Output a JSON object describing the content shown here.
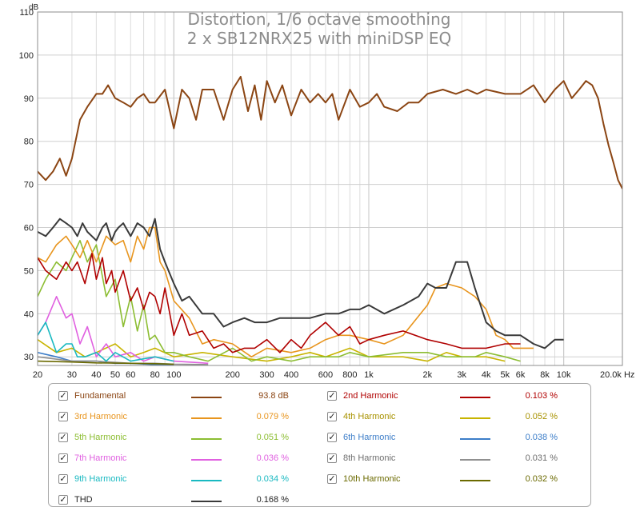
{
  "chart_data": {
    "type": "line",
    "title": "Distortion, 1/6 octave smoothing",
    "subtitle": "2 x SB12NRX25 with miniDSP EQ",
    "ylabel": "dB",
    "xunit": "Hz",
    "xscale": "log",
    "xlim": [
      20,
      20000
    ],
    "ylim": [
      28,
      110
    ],
    "grid": true,
    "x_ticks": [
      {
        "value": 20,
        "label": "20"
      },
      {
        "value": 30,
        "label": "30"
      },
      {
        "value": 40,
        "label": "40"
      },
      {
        "value": 50,
        "label": "50"
      },
      {
        "value": 60,
        "label": "60"
      },
      {
        "value": 80,
        "label": "80"
      },
      {
        "value": 100,
        "label": "100"
      },
      {
        "value": 200,
        "label": "200"
      },
      {
        "value": 300,
        "label": "300"
      },
      {
        "value": 400,
        "label": "400"
      },
      {
        "value": 600,
        "label": "600"
      },
      {
        "value": 800,
        "label": "800"
      },
      {
        "value": 1000,
        "label": "1k"
      },
      {
        "value": 2000,
        "label": "2k"
      },
      {
        "value": 3000,
        "label": "3k"
      },
      {
        "value": 4000,
        "label": "4k"
      },
      {
        "value": 5000,
        "label": "5k"
      },
      {
        "value": 6000,
        "label": "6k"
      },
      {
        "value": 8000,
        "label": "8k"
      },
      {
        "value": 10000,
        "label": "10k"
      },
      {
        "value": 20000,
        "label": "20.0k Hz"
      }
    ],
    "y_ticks": [
      {
        "value": 30,
        "label": "30"
      },
      {
        "value": 40,
        "label": "40"
      },
      {
        "value": 50,
        "label": "50"
      },
      {
        "value": 60,
        "label": "60"
      },
      {
        "value": 70,
        "label": "70"
      },
      {
        "value": 80,
        "label": "80"
      },
      {
        "value": 90,
        "label": "90"
      },
      {
        "value": 100,
        "label": "100"
      },
      {
        "value": 110,
        "label": "110"
      }
    ],
    "series": [
      {
        "name": "Fundamental",
        "color": "#8b4513",
        "value_label": "93.8 dB",
        "x": [
          20,
          22,
          24,
          26,
          28,
          30,
          33,
          36,
          40,
          43,
          46,
          50,
          55,
          60,
          65,
          70,
          75,
          80,
          90,
          100,
          110,
          120,
          130,
          140,
          160,
          180,
          200,
          220,
          240,
          260,
          280,
          300,
          330,
          360,
          400,
          450,
          500,
          550,
          600,
          650,
          700,
          800,
          900,
          1000,
          1100,
          1200,
          1400,
          1600,
          1800,
          2000,
          2400,
          2800,
          3200,
          3600,
          4000,
          5000,
          6000,
          7000,
          8000,
          9000,
          10000,
          11000,
          12000,
          13000,
          14000,
          15000,
          16000,
          17000,
          18000,
          19000,
          20000
        ],
        "y": [
          73,
          71,
          73,
          76,
          72,
          76,
          85,
          88,
          91,
          91,
          93,
          90,
          89,
          88,
          90,
          91,
          89,
          89,
          92,
          83,
          92,
          90,
          85,
          92,
          92,
          85,
          92,
          95,
          87,
          93,
          85,
          94,
          89,
          93,
          86,
          92,
          89,
          91,
          89,
          91,
          85,
          92,
          88,
          89,
          91,
          88,
          87,
          89,
          89,
          91,
          92,
          91,
          92,
          91,
          92,
          91,
          91,
          93,
          89,
          92,
          94,
          90,
          92,
          94,
          93,
          90,
          84,
          79,
          75,
          71,
          69
        ]
      },
      {
        "name": "2nd Harmonic",
        "color": "#b00000",
        "value_label": "0.103 %",
        "x": [
          20,
          22,
          25,
          28,
          30,
          32,
          35,
          38,
          40,
          43,
          45,
          48,
          50,
          55,
          60,
          65,
          70,
          75,
          80,
          85,
          90,
          100,
          110,
          120,
          140,
          160,
          180,
          200,
          230,
          260,
          300,
          350,
          400,
          450,
          500,
          600,
          700,
          800,
          900,
          1000,
          1200,
          1500,
          2000,
          2500,
          3000,
          4000,
          5000,
          6000
        ],
        "y": [
          53,
          50,
          48,
          52,
          50,
          52,
          47,
          54,
          48,
          53,
          47,
          50,
          45,
          50,
          43,
          46,
          41,
          45,
          44,
          40,
          46,
          35,
          40,
          35,
          36,
          32,
          33,
          31,
          32,
          32,
          34,
          31,
          34,
          32,
          35,
          38,
          35,
          37,
          33,
          34,
          35,
          36,
          34,
          33,
          32,
          32,
          33,
          33
        ]
      },
      {
        "name": "3rd Harmonic",
        "color": "#e8951e",
        "value_label": "0.079 %",
        "x": [
          20,
          22,
          25,
          28,
          30,
          33,
          36,
          40,
          45,
          50,
          55,
          60,
          65,
          70,
          75,
          80,
          85,
          90,
          100,
          120,
          140,
          160,
          200,
          250,
          300,
          400,
          500,
          600,
          700,
          800,
          1000,
          1200,
          1500,
          2000,
          2200,
          2500,
          3000,
          3500,
          4000,
          4500,
          5000,
          5500,
          6000,
          7000
        ],
        "y": [
          53,
          52,
          56,
          58,
          56,
          53,
          57,
          52,
          58,
          56,
          57,
          52,
          58,
          55,
          60,
          60,
          52,
          50,
          43,
          39,
          33,
          34,
          33,
          30,
          32,
          31,
          32,
          34,
          35,
          35,
          34,
          33,
          35,
          42,
          46,
          47,
          46,
          44,
          41,
          35,
          34,
          32,
          32,
          32
        ]
      },
      {
        "name": "4th Harmonic",
        "color": "#c8b400",
        "value_label": "0.052 %",
        "x": [
          20,
          25,
          30,
          35,
          40,
          50,
          60,
          70,
          80,
          100,
          140,
          200,
          300,
          400,
          500,
          600,
          800,
          1000,
          1500,
          2000,
          2500,
          3000,
          4000,
          5000
        ],
        "y": [
          34,
          31,
          32,
          30,
          31,
          33,
          30,
          31,
          32,
          30,
          31,
          30,
          29,
          30,
          31,
          30,
          32,
          30,
          30,
          29,
          31,
          30,
          30,
          29
        ]
      },
      {
        "name": "5th Harmonic",
        "color": "#8cbd32",
        "value_label": "0.051 %",
        "x": [
          20,
          22,
          25,
          28,
          30,
          33,
          36,
          40,
          45,
          50,
          55,
          60,
          65,
          70,
          75,
          80,
          90,
          100,
          120,
          150,
          200,
          250,
          300,
          400,
          500,
          600,
          700,
          800,
          1000,
          1500,
          2000,
          2500,
          3000,
          3500,
          4000,
          5000,
          6000
        ],
        "y": [
          44,
          48,
          52,
          50,
          53,
          57,
          52,
          56,
          44,
          48,
          37,
          44,
          36,
          42,
          34,
          35,
          31,
          31,
          30,
          29,
          32,
          29,
          30,
          29,
          30,
          30,
          30,
          31,
          30,
          31,
          31,
          30,
          30,
          30,
          31,
          30,
          29
        ]
      },
      {
        "name": "6th Harmonic",
        "color": "#3c7dc8",
        "value_label": "0.038 %",
        "x": [
          20,
          25,
          30,
          40,
          50,
          60,
          80,
          100
        ],
        "y": [
          31,
          30,
          29,
          29,
          28.5,
          28.5,
          28.2,
          28.2
        ]
      },
      {
        "name": "7th Harmonic",
        "color": "#e060e0",
        "value_label": "0.036 %",
        "x": [
          20,
          22,
          25,
          28,
          30,
          33,
          36,
          40,
          45,
          50,
          60,
          70,
          80,
          100,
          150
        ],
        "y": [
          35,
          38,
          44,
          39,
          40,
          33,
          37,
          30,
          33,
          30,
          31,
          29,
          30,
          29,
          28.5
        ]
      },
      {
        "name": "8th Harmonic",
        "color": "#909090",
        "value_label": "0.031 %",
        "x": [
          20,
          30,
          40,
          60,
          80,
          100,
          150
        ],
        "y": [
          30,
          29,
          29,
          28.5,
          28.5,
          28.3,
          28.2
        ]
      },
      {
        "name": "9th Harmonic",
        "color": "#19b9c1",
        "value_label": "0.034 %",
        "x": [
          20,
          22,
          25,
          28,
          30,
          32,
          35,
          40,
          45,
          50,
          60,
          80,
          100
        ],
        "y": [
          35,
          38,
          31,
          33,
          33,
          30,
          30,
          31,
          29,
          31,
          29,
          30,
          29
        ]
      },
      {
        "name": "10th Harmonic",
        "color": "#6b6a00",
        "value_label": "0.032 %",
        "x": [
          20,
          30,
          40,
          60,
          80,
          100
        ],
        "y": [
          29,
          28.8,
          28.6,
          28.5,
          28.4,
          28.3
        ]
      },
      {
        "name": "THD",
        "color": "#3a3a3a",
        "value_label": "0.168 %",
        "x": [
          20,
          22,
          24,
          26,
          28,
          30,
          32,
          34,
          36,
          40,
          43,
          45,
          48,
          50,
          52,
          55,
          60,
          65,
          70,
          75,
          80,
          85,
          90,
          100,
          110,
          120,
          140,
          160,
          180,
          200,
          230,
          260,
          300,
          350,
          400,
          450,
          500,
          600,
          700,
          800,
          900,
          1000,
          1200,
          1500,
          1800,
          2000,
          2200,
          2500,
          2800,
          3000,
          3200,
          3500,
          4000,
          4500,
          5000,
          6000,
          7000,
          8000,
          9000,
          10000
        ],
        "y": [
          59,
          58,
          60,
          62,
          61,
          60,
          58,
          61,
          59,
          57,
          60,
          61,
          57,
          59,
          60,
          61,
          58,
          61,
          60,
          58,
          62,
          55,
          52,
          47,
          43,
          44,
          40,
          40,
          37,
          38,
          39,
          38,
          38,
          39,
          39,
          39,
          39,
          40,
          40,
          41,
          41,
          42,
          40,
          42,
          44,
          47,
          46,
          46,
          52,
          52,
          52,
          46,
          38,
          36,
          35,
          35,
          33,
          32,
          34,
          34
        ]
      }
    ]
  }
}
